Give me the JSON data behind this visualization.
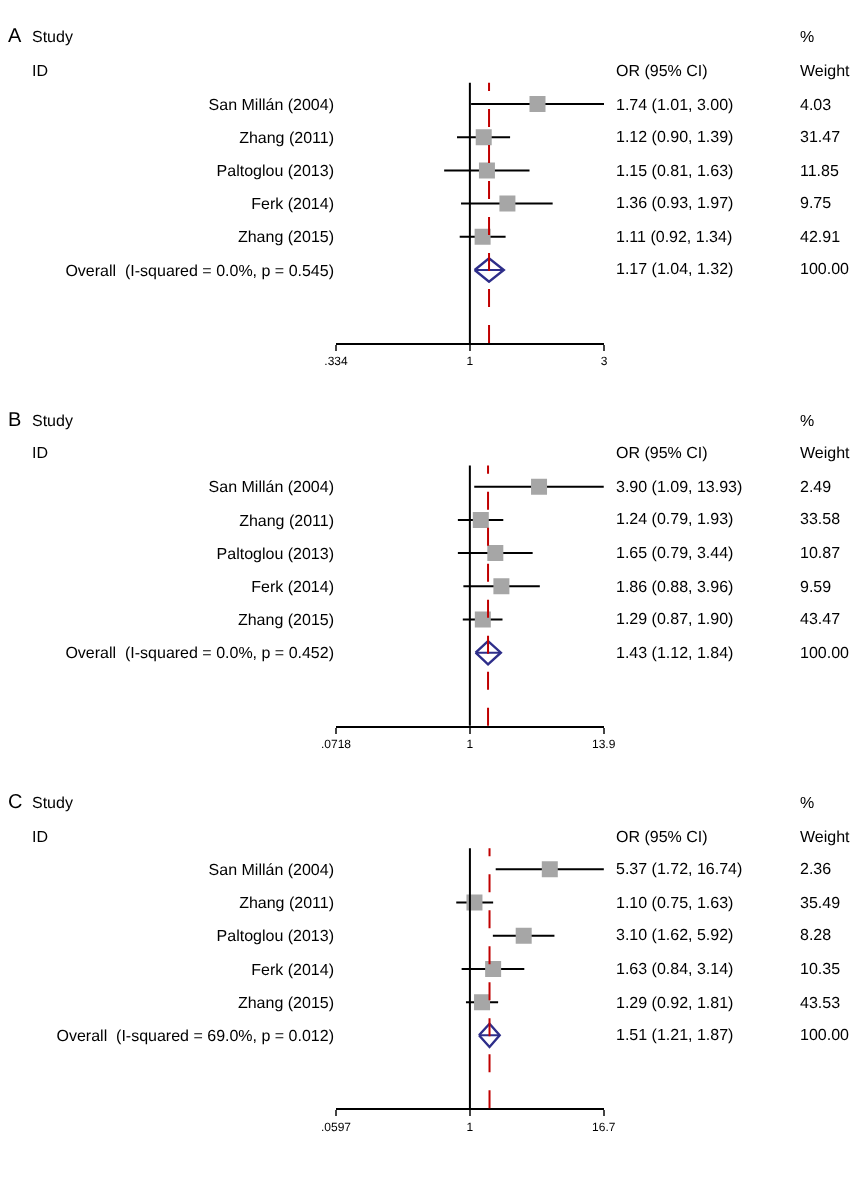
{
  "chart_data": [
    {
      "type": "scatter",
      "title": "A",
      "orientation": "horizontal",
      "log": "x",
      "categories": [
        "San Millán (2004)",
        "Zhang (2011)",
        "Paltoglou (2013)",
        "Ferk (2014)",
        "Zhang (2015)",
        "Overall  (I-squared = 0.0%, p = 0.545)"
      ],
      "xlim": [
        0.334,
        3
      ],
      "xticks": [
        {
          "value": 0.334,
          "label": ".334"
        },
        1,
        3
      ],
      "series": [
        {
          "color": "#a6a6a6",
          "marker": "square",
          "values": [
            1.74,
            1.12,
            1.15,
            1.36,
            1.11,
            null
          ],
          "errors": [
            [
              1.01,
              3.0
            ],
            [
              0.9,
              1.39
            ],
            [
              0.81,
              1.63
            ],
            [
              0.93,
              1.97
            ],
            [
              0.92,
              1.34
            ],
            null
          ]
        },
        {
          "color": "#2e2e8a",
          "marker": "diamond",
          "values": [
            null,
            null,
            null,
            null,
            null,
            1.17
          ],
          "errors": [
            null,
            null,
            null,
            null,
            null,
            [
              1.04,
              1.32
            ]
          ]
        }
      ],
      "ref_lines": [
        {
          "axis": "x",
          "value": 1,
          "color": "#000000",
          "line_style": "solid"
        },
        {
          "axis": "x",
          "value": 1.17,
          "color": "#c00000",
          "line_style": "dashed"
        }
      ],
      "annotations": [
        "Study",
        "ID",
        "OR (95% CI)",
        "%",
        "Weight",
        "1.74 (1.01, 3.00)",
        "1.12 (0.90, 1.39)",
        "1.15 (0.81, 1.63)",
        "1.36 (0.93, 1.97)",
        "1.11 (0.92, 1.34)",
        "1.17 (1.04, 1.32)",
        "4.03",
        "31.47",
        "11.85",
        "9.75",
        "42.91",
        "100.00"
      ]
    },
    {
      "type": "scatter",
      "title": "B",
      "orientation": "horizontal",
      "log": "x",
      "categories": [
        "San Millán (2004)",
        "Zhang (2011)",
        "Paltoglou (2013)",
        "Ferk (2014)",
        "Zhang (2015)",
        "Overall  (I-squared = 0.0%, p = 0.452)"
      ],
      "xlim": [
        0.0718,
        14
      ],
      "xticks": [
        {
          "value": 0.0718,
          "label": ".0718"
        },
        1,
        13.9
      ],
      "series": [
        {
          "color": "#a6a6a6",
          "marker": "square",
          "values": [
            3.9,
            1.24,
            1.65,
            1.86,
            1.29,
            null
          ],
          "errors": [
            [
              1.09,
              13.93
            ],
            [
              0.79,
              1.93
            ],
            [
              0.79,
              3.44
            ],
            [
              0.88,
              3.96
            ],
            [
              0.87,
              1.9
            ],
            null
          ]
        },
        {
          "color": "#2e2e8a",
          "marker": "diamond",
          "values": [
            null,
            null,
            null,
            null,
            null,
            1.43
          ],
          "errors": [
            null,
            null,
            null,
            null,
            null,
            [
              1.12,
              1.84
            ]
          ]
        }
      ],
      "ref_lines": [
        {
          "axis": "x",
          "value": 1,
          "color": "#000000",
          "line_style": "solid"
        },
        {
          "axis": "x",
          "value": 1.43,
          "color": "#c00000",
          "line_style": "dashed"
        }
      ],
      "annotations": [
        "Study",
        "ID",
        "OR (95% CI)",
        "%",
        "Weight",
        "3.90 (1.09, 13.93)",
        "1.24 (0.79, 1.93)",
        "1.65 (0.79, 3.44)",
        "1.86 (0.88, 3.96)",
        "1.29 (0.87, 1.90)",
        "1.43 (1.12, 1.84)",
        "2.49",
        "33.58",
        "10.87",
        "9.59",
        "43.47",
        "100.00"
      ]
    },
    {
      "type": "scatter",
      "title": "C",
      "orientation": "horizontal",
      "log": "x",
      "categories": [
        "San Millán (2004)",
        "Zhang (2011)",
        "Paltoglou (2013)",
        "Ferk (2014)",
        "Zhang (2015)",
        "Overall  (I-squared = 69.0%, p = 0.012)"
      ],
      "xlim": [
        0.0597,
        16.8
      ],
      "xticks": [
        {
          "value": 0.0597,
          "label": ".0597"
        },
        1,
        16.7
      ],
      "series": [
        {
          "color": "#a6a6a6",
          "marker": "square",
          "values": [
            5.37,
            1.1,
            3.1,
            1.63,
            1.29,
            null
          ],
          "errors": [
            [
              1.72,
              16.74
            ],
            [
              0.75,
              1.63
            ],
            [
              1.62,
              5.92
            ],
            [
              0.84,
              3.14
            ],
            [
              0.92,
              1.81
            ],
            null
          ]
        },
        {
          "color": "#2e2e8a",
          "marker": "diamond",
          "values": [
            null,
            null,
            null,
            null,
            null,
            1.51
          ],
          "errors": [
            null,
            null,
            null,
            null,
            null,
            [
              1.21,
              1.87
            ]
          ]
        }
      ],
      "ref_lines": [
        {
          "axis": "x",
          "value": 1,
          "color": "#000000",
          "line_style": "solid"
        },
        {
          "axis": "x",
          "value": 1.51,
          "color": "#c00000",
          "line_style": "dashed"
        }
      ],
      "annotations": [
        "Study",
        "ID",
        "OR (95% CI)",
        "%",
        "Weight",
        "5.37 (1.72, 16.74)",
        "1.10 (0.75, 1.63)",
        "3.10 (1.62, 5.92)",
        "1.63 (0.84, 3.14)",
        "1.29 (0.92, 1.81)",
        "1.51 (1.21, 1.87)",
        "2.36",
        "35.49",
        "8.28",
        "10.35",
        "43.53",
        "100.00"
      ]
    }
  ]
}
